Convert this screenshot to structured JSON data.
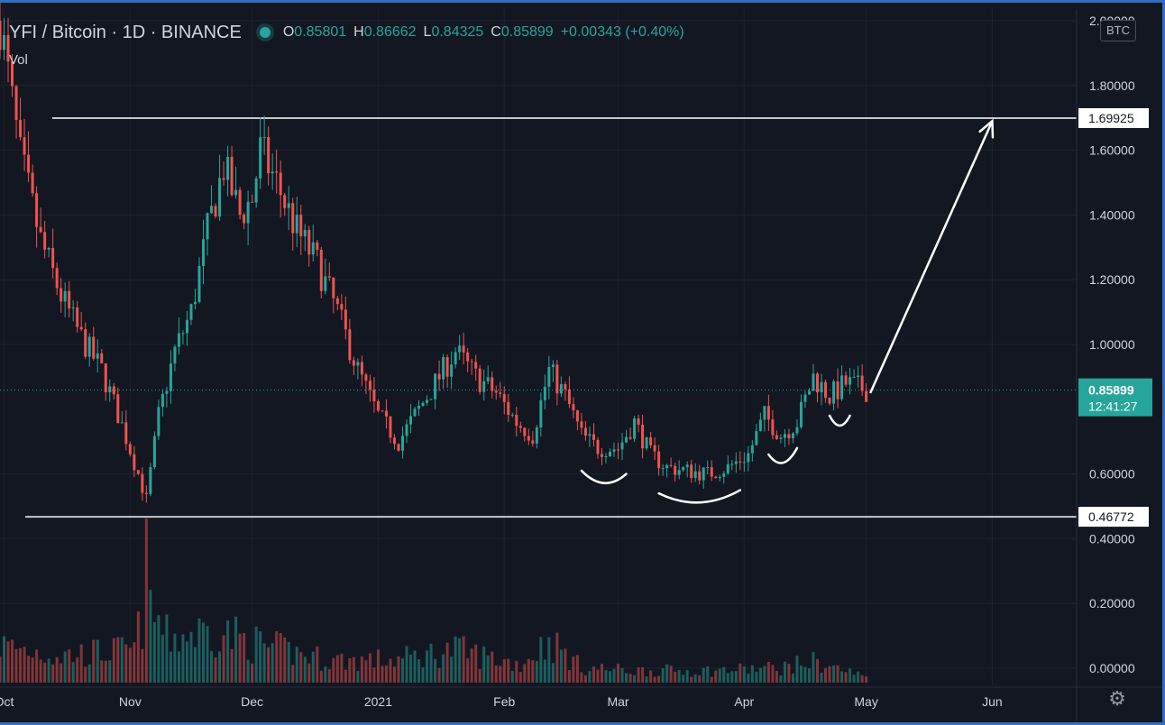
{
  "header": {
    "symbol": "YFI / Bitcoin · 1D · BINANCE",
    "ohlc": [
      {
        "k": "O",
        "v": "0.85801"
      },
      {
        "k": "H",
        "v": "0.86662"
      },
      {
        "k": "L",
        "v": "0.84325"
      },
      {
        "k": "C",
        "v": "0.85899"
      }
    ],
    "change": "+0.00343 (+0.40%)",
    "vol_label": "Vol"
  },
  "currency_badge": "BTC",
  "colors": {
    "background": "#131722",
    "up": "#26a69a",
    "down": "#ef5350",
    "grid": "#1f2331",
    "text": "#d1d4dc",
    "frame": "#2f6fc4"
  },
  "settings_icon": "gear-icon",
  "chart_data": {
    "type": "candlestick",
    "price_axis": {
      "min": 0,
      "max": 2.0,
      "ticks": [
        "2.00000",
        "1.80000",
        "1.60000",
        "1.40000",
        "1.20000",
        "1.00000",
        "0.60000",
        "0.40000",
        "0.20000",
        "0.00000"
      ]
    },
    "time_axis": [
      "Oct",
      "Nov",
      "Dec",
      "2021",
      "Feb",
      "Mar",
      "Apr",
      "May",
      "Jun"
    ],
    "last_price": "0.85899",
    "countdown": "12:41:27",
    "horizontal_lines": [
      {
        "value": 1.69925,
        "label": "1.69925"
      },
      {
        "value": 0.46772,
        "label": "0.46772"
      }
    ],
    "arrow": {
      "from": {
        "date": "2021-05-02",
        "value": 0.85
      },
      "to": {
        "date": "2021-06-01",
        "value": 1.69
      }
    },
    "curves": [
      {
        "from": {
          "date": "2021-02-20",
          "value": 0.61
        },
        "to": {
          "date": "2021-03-03",
          "value": 0.6
        }
      },
      {
        "from": {
          "date": "2021-03-11",
          "value": 0.54
        },
        "to": {
          "date": "2021-03-31",
          "value": 0.55
        }
      },
      {
        "from": {
          "date": "2021-04-07",
          "value": 0.66
        },
        "to": {
          "date": "2021-04-14",
          "value": 0.68
        }
      },
      {
        "from": {
          "date": "2021-04-22",
          "value": 0.78
        },
        "to": {
          "date": "2021-04-27",
          "value": 0.78
        }
      }
    ],
    "series": [
      {
        "name": "price",
        "anchors": [
          [
            "2020-09-30",
            2.0
          ],
          [
            "2020-10-05",
            1.58
          ],
          [
            "2020-10-10",
            1.32
          ],
          [
            "2020-10-15",
            1.15
          ],
          [
            "2020-10-20",
            1.02
          ],
          [
            "2020-10-25",
            0.92
          ],
          [
            "2020-10-30",
            0.75
          ],
          [
            "2020-11-03",
            0.6
          ],
          [
            "2020-11-05",
            0.52
          ],
          [
            "2020-11-08",
            0.78
          ],
          [
            "2020-11-12",
            0.98
          ],
          [
            "2020-11-16",
            1.1
          ],
          [
            "2020-11-20",
            1.35
          ],
          [
            "2020-11-24",
            1.55
          ],
          [
            "2020-11-28",
            1.4
          ],
          [
            "2020-12-01",
            1.45
          ],
          [
            "2020-12-03",
            1.6
          ],
          [
            "2020-12-07",
            1.5
          ],
          [
            "2020-12-12",
            1.35
          ],
          [
            "2020-12-17",
            1.25
          ],
          [
            "2020-12-22",
            1.1
          ],
          [
            "2020-12-27",
            0.92
          ],
          [
            "2021-01-01",
            0.78
          ],
          [
            "2021-01-06",
            0.7
          ],
          [
            "2021-01-10",
            0.78
          ],
          [
            "2021-01-15",
            0.88
          ],
          [
            "2021-01-20",
            0.98
          ],
          [
            "2021-01-25",
            0.9
          ],
          [
            "2021-01-30",
            0.85
          ],
          [
            "2021-02-04",
            0.76
          ],
          [
            "2021-02-08",
            0.72
          ],
          [
            "2021-02-12",
            0.92
          ],
          [
            "2021-02-16",
            0.84
          ],
          [
            "2021-02-20",
            0.72
          ],
          [
            "2021-02-24",
            0.68
          ],
          [
            "2021-03-01",
            0.68
          ],
          [
            "2021-03-05",
            0.76
          ],
          [
            "2021-03-09",
            0.66
          ],
          [
            "2021-03-13",
            0.62
          ],
          [
            "2021-03-18",
            0.61
          ],
          [
            "2021-03-23",
            0.6
          ],
          [
            "2021-03-28",
            0.62
          ],
          [
            "2021-04-02",
            0.66
          ],
          [
            "2021-04-06",
            0.78
          ],
          [
            "2021-04-10",
            0.72
          ],
          [
            "2021-04-14",
            0.76
          ],
          [
            "2021-04-18",
            0.9
          ],
          [
            "2021-04-22",
            0.84
          ],
          [
            "2021-04-26",
            0.88
          ],
          [
            "2021-05-01",
            0.86
          ]
        ]
      },
      {
        "name": "Vol",
        "relative_levels": [
          [
            "2020-09-30",
            0.25
          ],
          [
            "2020-10-15",
            0.18
          ],
          [
            "2020-11-02",
            0.22
          ],
          [
            "2020-11-05",
            0.55
          ],
          [
            "2020-11-10",
            0.3
          ],
          [
            "2020-11-22",
            0.35
          ],
          [
            "2020-12-03",
            0.25
          ],
          [
            "2020-12-20",
            0.15
          ],
          [
            "2021-01-05",
            0.15
          ],
          [
            "2021-01-20",
            0.22
          ],
          [
            "2021-02-05",
            0.12
          ],
          [
            "2021-02-12",
            0.28
          ],
          [
            "2021-02-20",
            0.1
          ],
          [
            "2021-03-05",
            0.08
          ],
          [
            "2021-03-25",
            0.08
          ],
          [
            "2021-04-10",
            0.1
          ],
          [
            "2021-04-18",
            0.14
          ],
          [
            "2021-05-01",
            0.04
          ]
        ]
      }
    ]
  }
}
